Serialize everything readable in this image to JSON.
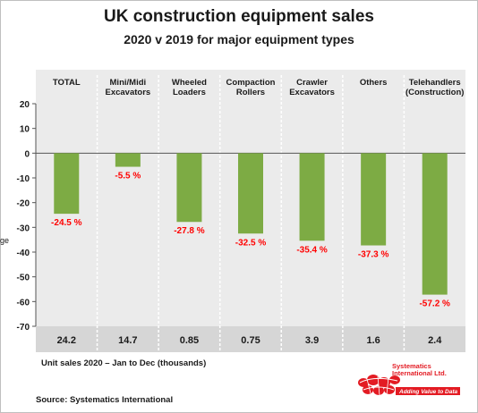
{
  "chart_data": {
    "type": "bar",
    "title": "UK construction equipment sales",
    "subtitle": "2020  v  2019 for major equipment types",
    "ylabel_fragment": "ge",
    "ylim": [
      -70,
      20
    ],
    "yticks": [
      20,
      10,
      0,
      -10,
      -20,
      -30,
      -40,
      -50,
      -60,
      -70
    ],
    "categories": [
      "TOTAL",
      "Mini/Midi\nExcavators",
      "Wheeled\nLoaders",
      "Compaction\nRollers",
      "Crawler\nExcavators",
      "Others",
      "Telehandlers\n(Construction)"
    ],
    "values": [
      -24.5,
      -5.5,
      -27.8,
      -32.5,
      -35.4,
      -37.3,
      -57.2
    ],
    "data_labels": [
      "-24.5 %",
      "-5.5 %",
      "-27.8 %",
      "-32.5 %",
      "-35.4 %",
      "-37.3 %",
      "-57.2 %"
    ],
    "unit_sales": [
      "24.2",
      "14.7",
      "0.85",
      "0.75",
      "3.9",
      "1.6",
      "2.4"
    ],
    "unit_sales_note": "Unit sales 2020 – Jan to Dec  (thousands)",
    "bar_color": "#7dab44",
    "label_color": "#ff0000",
    "grid": false,
    "legend": "none"
  },
  "source": "Source: Systematics International",
  "logo": {
    "name": "Systematics International Ltd.",
    "tagline": "Adding Value to Data"
  }
}
